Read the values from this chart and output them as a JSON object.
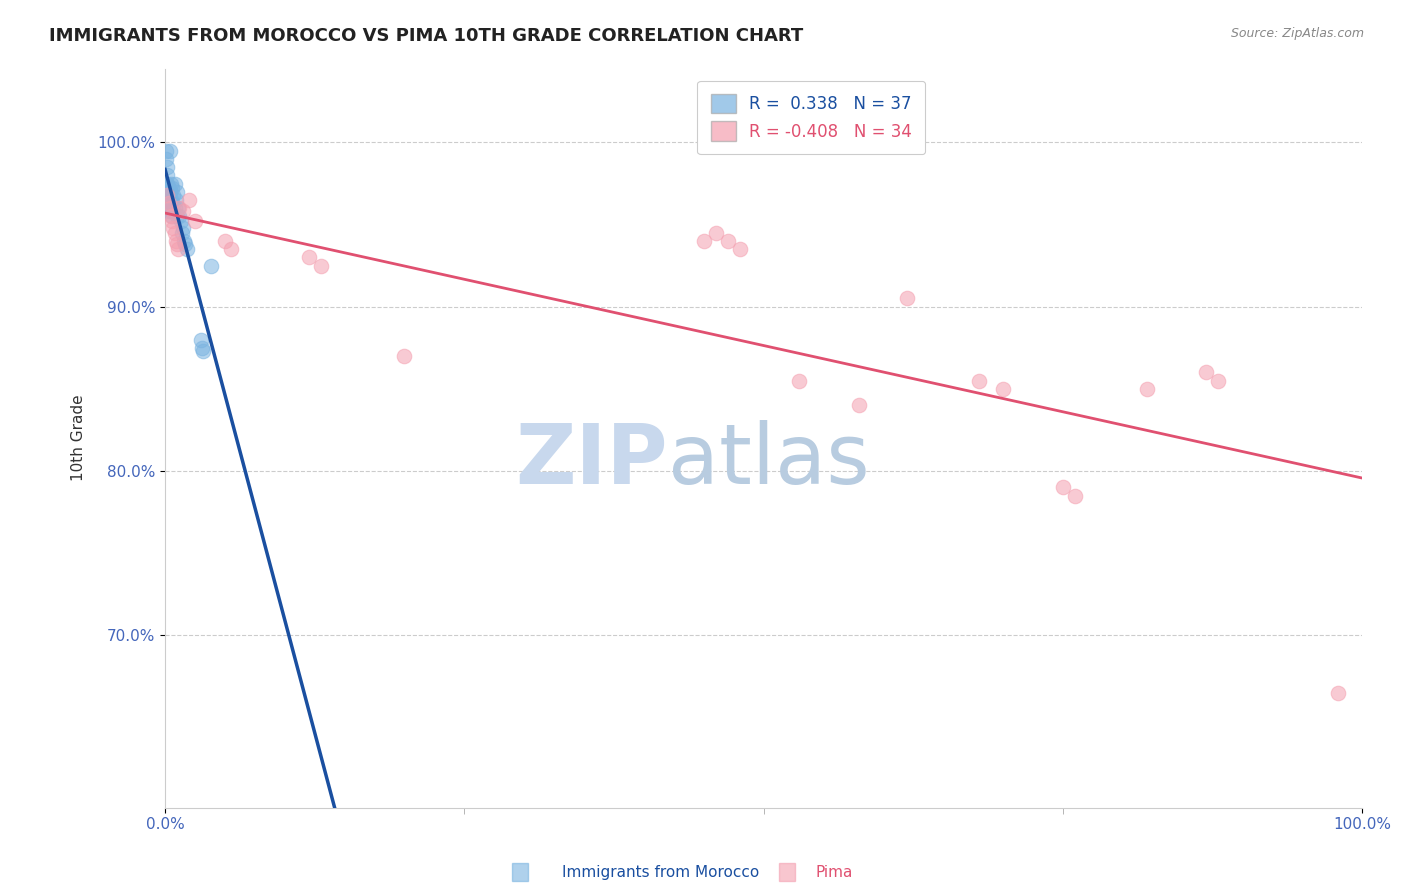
{
  "title": "IMMIGRANTS FROM MOROCCO VS PIMA 10TH GRADE CORRELATION CHART",
  "source": "Source: ZipAtlas.com",
  "ylabel": "10th Grade",
  "xlim": [
    0.0,
    1.0
  ],
  "ylim": [
    0.595,
    1.045
  ],
  "yticks": [
    0.7,
    0.8,
    0.9,
    1.0
  ],
  "ytick_labels": [
    "70.0%",
    "80.0%",
    "90.0%",
    "100.0%"
  ],
  "grid_color": "#cccccc",
  "background_color": "#ffffff",
  "blue_color": "#7ab3e0",
  "pink_color": "#f4a0b0",
  "blue_line_color": "#1a4fa0",
  "pink_line_color": "#e05070",
  "legend_R_blue": "0.338",
  "legend_N_blue": "37",
  "legend_R_pink": "-0.408",
  "legend_N_pink": "34",
  "blue_points_x": [
    0.001,
    0.001,
    0.002,
    0.002,
    0.002,
    0.003,
    0.003,
    0.003,
    0.003,
    0.004,
    0.004,
    0.004,
    0.005,
    0.005,
    0.005,
    0.006,
    0.006,
    0.006,
    0.007,
    0.007,
    0.008,
    0.008,
    0.009,
    0.01,
    0.01,
    0.011,
    0.012,
    0.013,
    0.014,
    0.015,
    0.016,
    0.017,
    0.018,
    0.03,
    0.031,
    0.032,
    0.038
  ],
  "blue_points_y": [
    0.995,
    0.99,
    0.985,
    0.98,
    0.975,
    0.972,
    0.968,
    0.962,
    0.958,
    0.995,
    0.97,
    0.96,
    0.975,
    0.965,
    0.958,
    0.972,
    0.963,
    0.955,
    0.968,
    0.958,
    0.975,
    0.96,
    0.965,
    0.97,
    0.955,
    0.96,
    0.955,
    0.952,
    0.945,
    0.948,
    0.94,
    0.938,
    0.935,
    0.88,
    0.875,
    0.873,
    0.925
  ],
  "pink_points_x": [
    0.002,
    0.003,
    0.004,
    0.005,
    0.006,
    0.007,
    0.008,
    0.009,
    0.01,
    0.011,
    0.012,
    0.015,
    0.02,
    0.025,
    0.05,
    0.055,
    0.12,
    0.13,
    0.2,
    0.45,
    0.46,
    0.47,
    0.48,
    0.53,
    0.58,
    0.62,
    0.68,
    0.7,
    0.75,
    0.76,
    0.82,
    0.87,
    0.88,
    0.98
  ],
  "pink_points_y": [
    0.968,
    0.963,
    0.96,
    0.955,
    0.952,
    0.948,
    0.945,
    0.94,
    0.938,
    0.935,
    0.96,
    0.958,
    0.965,
    0.952,
    0.94,
    0.935,
    0.93,
    0.925,
    0.87,
    0.94,
    0.945,
    0.94,
    0.935,
    0.855,
    0.84,
    0.905,
    0.855,
    0.85,
    0.79,
    0.785,
    0.85,
    0.86,
    0.855,
    0.665
  ],
  "watermark_zip": "ZIP",
  "watermark_atlas": "atlas",
  "watermark_color_zip": "#c8d8ed",
  "watermark_color_atlas": "#b8cce0"
}
